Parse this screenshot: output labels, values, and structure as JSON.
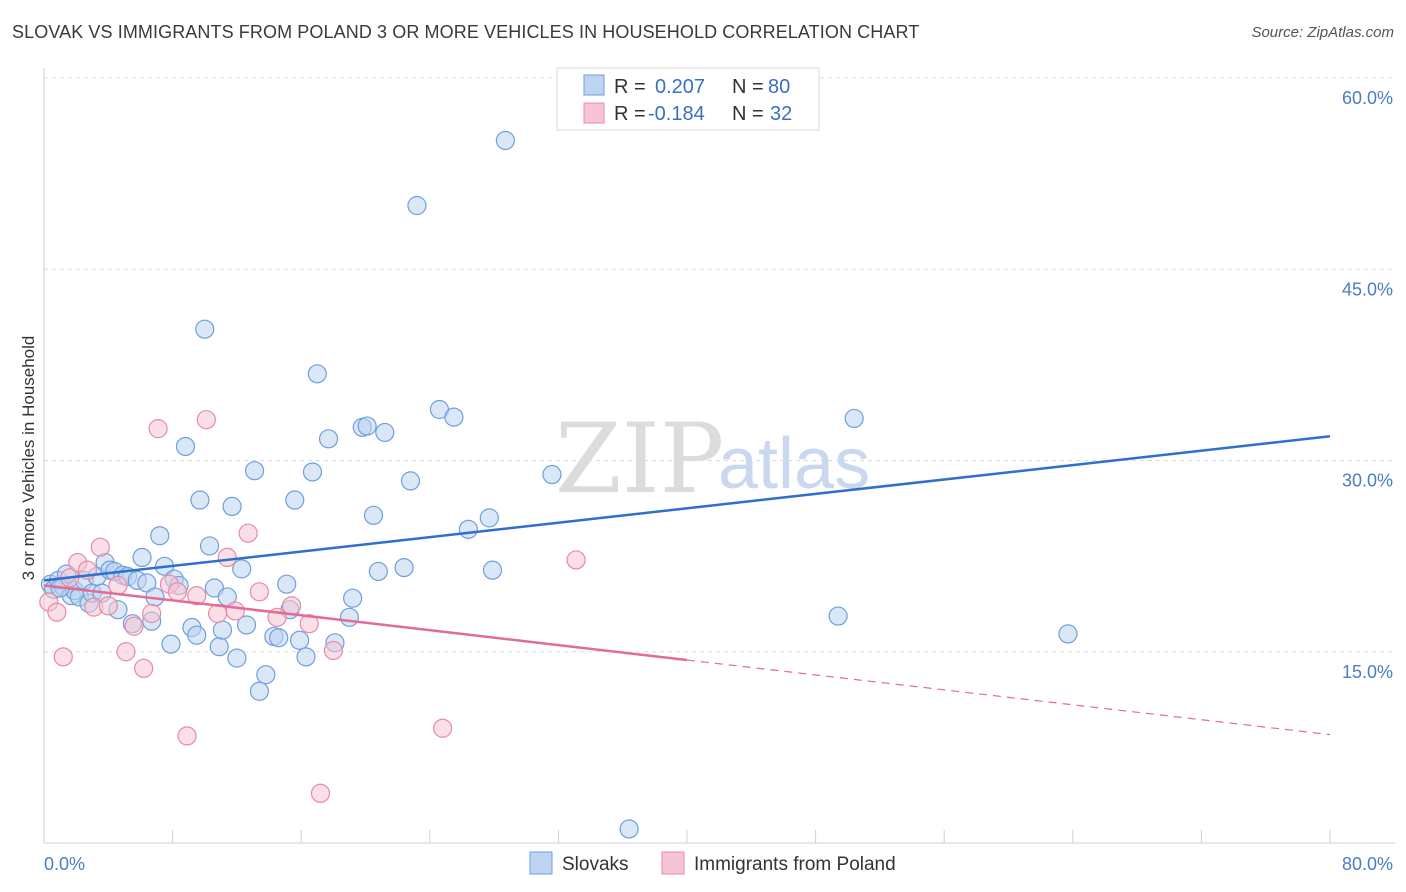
{
  "header": {
    "title": "SLOVAK VS IMMIGRANTS FROM POLAND 3 OR MORE VEHICLES IN HOUSEHOLD CORRELATION CHART",
    "source": "Source: ZipAtlas.com"
  },
  "watermark": {
    "zip": "ZIP",
    "atlas": "atlas"
  },
  "chart_data": {
    "type": "scatter",
    "title": "SLOVAK VS IMMIGRANTS FROM POLAND 3 OR MORE VEHICLES IN HOUSEHOLD CORRELATION CHART",
    "xlabel": "",
    "ylabel": "3 or more Vehicles in Household",
    "xlim": [
      0,
      80
    ],
    "ylim": [
      0,
      60
    ],
    "x_tick_labels": [
      "0.0%",
      "80.0%"
    ],
    "y_ticks": [
      15,
      30,
      45,
      60
    ],
    "y_tick_labels": [
      "15.0%",
      "30.0%",
      "45.0%",
      "60.0%"
    ],
    "grid": true,
    "legend_position": "top-center",
    "series": [
      {
        "name": "Slovaks",
        "color": "#6f9fdc",
        "fill": "#bcd3f1",
        "r_label": "R = ",
        "r_value": "0.207",
        "n_label": "N = ",
        "n_value": "80",
        "trend": {
          "x": [
            0,
            80
          ],
          "y": [
            20.6,
            31.9
          ],
          "dashed_from": null
        },
        "points": [
          [
            0.4,
            20.3
          ],
          [
            0.6,
            19.9
          ],
          [
            0.9,
            20.6
          ],
          [
            1.2,
            20.1
          ],
          [
            1.4,
            21.1
          ],
          [
            1.7,
            19.4
          ],
          [
            1.9,
            19.8
          ],
          [
            2.2,
            19.3
          ],
          [
            2.5,
            20.6
          ],
          [
            2.8,
            18.8
          ],
          [
            3.0,
            19.6
          ],
          [
            3.3,
            20.9
          ],
          [
            3.6,
            19.6
          ],
          [
            3.8,
            22.0
          ],
          [
            4.1,
            21.4
          ],
          [
            4.4,
            21.3
          ],
          [
            4.6,
            18.3
          ],
          [
            4.9,
            21.0
          ],
          [
            5.2,
            20.9
          ],
          [
            5.5,
            17.2
          ],
          [
            5.8,
            20.6
          ],
          [
            6.1,
            22.4
          ],
          [
            6.4,
            20.4
          ],
          [
            6.7,
            17.4
          ],
          [
            6.9,
            19.3
          ],
          [
            7.2,
            24.1
          ],
          [
            7.5,
            21.7
          ],
          [
            7.9,
            15.6
          ],
          [
            8.1,
            20.7
          ],
          [
            8.4,
            20.2
          ],
          [
            8.8,
            31.1
          ],
          [
            9.2,
            16.9
          ],
          [
            9.5,
            16.3
          ],
          [
            9.7,
            26.9
          ],
          [
            10.0,
            40.3
          ],
          [
            10.3,
            23.3
          ],
          [
            10.6,
            20.0
          ],
          [
            10.9,
            15.4
          ],
          [
            11.1,
            16.7
          ],
          [
            11.4,
            19.3
          ],
          [
            11.7,
            26.4
          ],
          [
            12.0,
            14.5
          ],
          [
            12.3,
            21.5
          ],
          [
            12.6,
            17.1
          ],
          [
            13.1,
            29.2
          ],
          [
            13.4,
            11.9
          ],
          [
            13.8,
            13.2
          ],
          [
            14.3,
            16.2
          ],
          [
            14.6,
            16.1
          ],
          [
            15.1,
            20.3
          ],
          [
            15.3,
            18.3
          ],
          [
            15.6,
            26.9
          ],
          [
            15.9,
            15.9
          ],
          [
            16.3,
            14.6
          ],
          [
            16.7,
            29.1
          ],
          [
            17.0,
            36.8
          ],
          [
            17.7,
            31.7
          ],
          [
            18.1,
            15.7
          ],
          [
            19.0,
            17.7
          ],
          [
            19.2,
            19.2
          ],
          [
            19.8,
            32.6
          ],
          [
            20.1,
            32.7
          ],
          [
            20.5,
            25.7
          ],
          [
            20.8,
            21.3
          ],
          [
            21.2,
            32.2
          ],
          [
            22.4,
            21.6
          ],
          [
            22.8,
            28.4
          ],
          [
            23.2,
            50.0
          ],
          [
            24.6,
            34.0
          ],
          [
            25.5,
            33.4
          ],
          [
            26.4,
            24.6
          ],
          [
            27.7,
            25.5
          ],
          [
            27.9,
            21.4
          ],
          [
            28.7,
            55.1
          ],
          [
            31.6,
            28.9
          ],
          [
            36.4,
            1.1
          ],
          [
            49.4,
            17.8
          ],
          [
            50.4,
            33.3
          ],
          [
            63.7,
            16.4
          ],
          [
            1.0,
            20.0
          ]
        ]
      },
      {
        "name": "Immigrants from Poland",
        "color": "#e88aa8",
        "fill": "#f6c4d4",
        "r_label": "R = ",
        "r_value": "-0.184",
        "n_label": "N = ",
        "n_value": "32",
        "trend": {
          "x": [
            0,
            80
          ],
          "y": [
            20.2,
            8.5
          ],
          "dashed_from": 40
        },
        "points": [
          [
            0.3,
            18.9
          ],
          [
            0.8,
            18.1
          ],
          [
            1.2,
            14.6
          ],
          [
            1.6,
            20.8
          ],
          [
            2.1,
            22.0
          ],
          [
            2.7,
            21.4
          ],
          [
            3.1,
            18.5
          ],
          [
            3.5,
            23.2
          ],
          [
            4.0,
            18.6
          ],
          [
            4.6,
            20.2
          ],
          [
            5.1,
            15.0
          ],
          [
            5.6,
            17.0
          ],
          [
            6.2,
            13.7
          ],
          [
            6.7,
            18.0
          ],
          [
            7.1,
            32.5
          ],
          [
            7.8,
            20.3
          ],
          [
            8.3,
            19.7
          ],
          [
            8.9,
            8.4
          ],
          [
            9.5,
            19.4
          ],
          [
            10.1,
            33.2
          ],
          [
            10.8,
            18.0
          ],
          [
            11.4,
            22.4
          ],
          [
            11.9,
            18.2
          ],
          [
            12.7,
            24.3
          ],
          [
            13.4,
            19.7
          ],
          [
            14.5,
            17.7
          ],
          [
            15.4,
            18.6
          ],
          [
            16.5,
            17.2
          ],
          [
            17.2,
            3.9
          ],
          [
            18.0,
            15.1
          ],
          [
            24.8,
            9.0
          ],
          [
            33.1,
            22.2
          ]
        ]
      }
    ]
  }
}
